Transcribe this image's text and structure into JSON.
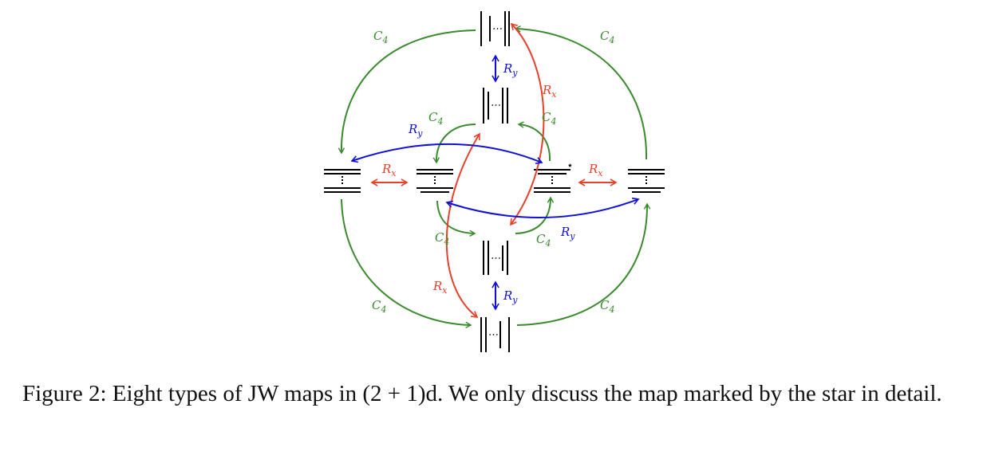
{
  "colors": {
    "c4": "#3a8a2e",
    "rx": "#e8402a",
    "ry": "#1010d8",
    "ink": "#000000"
  },
  "labels": {
    "c4": "C",
    "c4_sub": "4",
    "rx": "R",
    "rx_sub": "x",
    "ry": "R",
    "ry_sub": "y",
    "star": "⋆",
    "dots": "⋯"
  },
  "caption": {
    "number": "Figure 2:",
    "text": "Eight types of JW maps in (2 + 1)d. We only discuss the map marked by the star in detail."
  }
}
